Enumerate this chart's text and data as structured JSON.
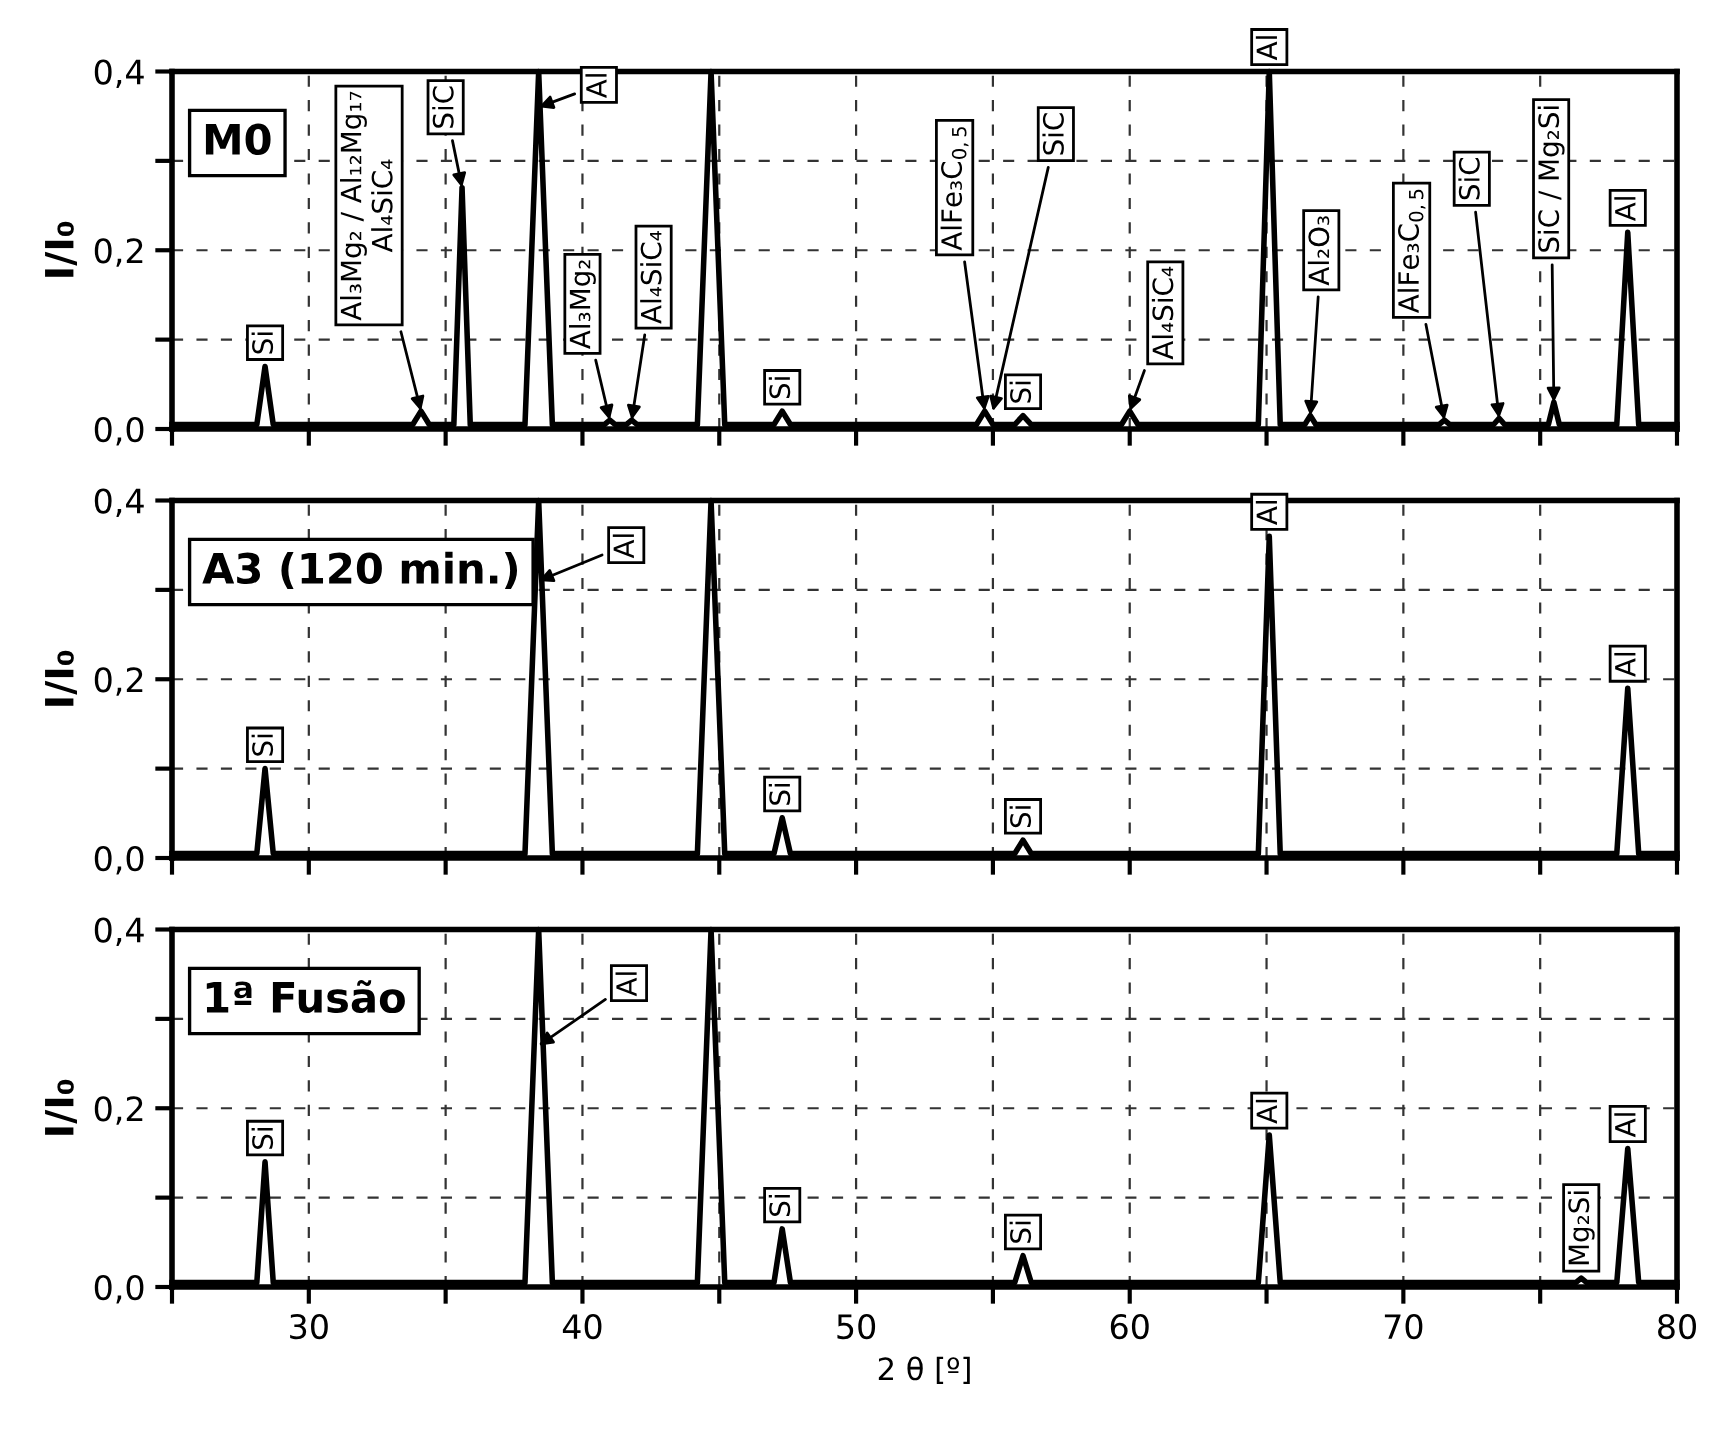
{
  "chart_data": [
    {
      "type": "line",
      "ylabel": "I/I₀",
      "xlim": [
        25,
        80
      ],
      "ylim": [
        0,
        0.4
      ],
      "grid": true,
      "tick_labels": "y",
      "xticks": [
        {
          "value": 25,
          "label": null
        },
        {
          "value": 30,
          "label": null
        },
        {
          "value": 35,
          "label": null
        },
        {
          "value": 40,
          "label": null
        },
        {
          "value": 45,
          "label": null
        },
        {
          "value": 50,
          "label": null
        },
        {
          "value": 55,
          "label": null
        },
        {
          "value": 60,
          "label": null
        },
        {
          "value": 65,
          "label": null
        },
        {
          "value": 70,
          "label": null
        },
        {
          "value": 75,
          "label": null
        },
        {
          "value": 80,
          "label": null
        }
      ],
      "yticks": [
        {
          "value": 0,
          "label": "0,0"
        },
        {
          "value": 0.1,
          "label": null
        },
        {
          "value": 0.2,
          "label": "0,2"
        },
        {
          "value": 0.3,
          "label": null
        },
        {
          "value": 0.4,
          "label": "0,4"
        }
      ],
      "series": [
        {
          "color": "#000000",
          "x": [
            25,
            28.1,
            28.4,
            28.7,
            33.8,
            34.1,
            34.4,
            35.3,
            35.6,
            35.9,
            37.9,
            38.4,
            38.9,
            40.8,
            41.0,
            41.2,
            41.6,
            41.8,
            42.0,
            44.2,
            44.7,
            45.2,
            47.0,
            47.3,
            47.6,
            54.4,
            54.7,
            55.0,
            55.8,
            56.1,
            56.4,
            59.7,
            60.0,
            60.3,
            64.7,
            65.1,
            65.5,
            66.4,
            66.6,
            66.8,
            71.3,
            71.5,
            71.7,
            73.3,
            73.5,
            73.7,
            75.3,
            75.5,
            75.7,
            77.8,
            78.2,
            78.6,
            80
          ],
          "values": [
            0.005,
            0.005,
            0.07,
            0.005,
            0.005,
            0.02,
            0.005,
            0.005,
            0.27,
            0.005,
            0.005,
            0.4,
            0.005,
            0.005,
            0.01,
            0.005,
            0.005,
            0.01,
            0.005,
            0.005,
            0.4,
            0.005,
            0.005,
            0.02,
            0.005,
            0.005,
            0.02,
            0.005,
            0.005,
            0.015,
            0.005,
            0.005,
            0.02,
            0.005,
            0.005,
            0.4,
            0.005,
            0.005,
            0.015,
            0.005,
            0.005,
            0.01,
            0.005,
            0.005,
            0.012,
            0.005,
            0.005,
            0.03,
            0.005,
            0.005,
            0.22,
            0.005,
            0.005
          ]
        }
      ],
      "annotations": [
        "M0",
        {
          "text": "Si",
          "x": 28.4,
          "y": 0.07
        },
        {
          "text": "Al₃Mg₂ / Al₁₂Mg₁₇\nAl₄SiC₄",
          "x": 34.1,
          "y": 0.02
        },
        {
          "text": "SiC",
          "x": 35.6,
          "y": 0.27
        },
        {
          "text": "Al",
          "x": 38.4,
          "y": 0.36
        },
        {
          "text": "Al₃Mg₂",
          "x": 41.0,
          "y": 0.01
        },
        {
          "text": "Al₄SiC₄",
          "x": 41.8,
          "y": 0.01
        },
        {
          "text": "Si",
          "x": 47.3,
          "y": 0.02
        },
        {
          "text": "AlFe₃C$_{0,5}$",
          "x": 54.7,
          "y": 0.02
        },
        {
          "text": "SiC",
          "x": 55.0,
          "y": 0.02
        },
        {
          "text": "Si",
          "x": 56.1,
          "y": 0.015
        },
        {
          "text": "Al₄SiC₄",
          "x": 60.0,
          "y": 0.02
        },
        {
          "text": "Al",
          "x": 65.1,
          "y": 0.4
        },
        {
          "text": "Al₂O₃",
          "x": 66.6,
          "y": 0.015
        },
        {
          "text": "AlFe₃C$_{0,5}$",
          "x": 71.5,
          "y": 0.01
        },
        {
          "text": "SiC",
          "x": 73.5,
          "y": 0.012
        },
        {
          "text": "SiC / Mg₂Si",
          "x": 75.5,
          "y": 0.03
        },
        {
          "text": "Al",
          "x": 78.2,
          "y": 0.22
        }
      ]
    },
    {
      "type": "line",
      "ylabel": "I/I₀",
      "xlim": [
        25,
        80
      ],
      "ylim": [
        0,
        0.4
      ],
      "grid": true,
      "tick_labels": "y",
      "xticks": [
        {
          "value": 25,
          "label": null
        },
        {
          "value": 30,
          "label": null
        },
        {
          "value": 35,
          "label": null
        },
        {
          "value": 40,
          "label": null
        },
        {
          "value": 45,
          "label": null
        },
        {
          "value": 50,
          "label": null
        },
        {
          "value": 55,
          "label": null
        },
        {
          "value": 60,
          "label": null
        },
        {
          "value": 65,
          "label": null
        },
        {
          "value": 70,
          "label": null
        },
        {
          "value": 75,
          "label": null
        },
        {
          "value": 80,
          "label": null
        }
      ],
      "yticks": [
        {
          "value": 0,
          "label": "0,0"
        },
        {
          "value": 0.1,
          "label": null
        },
        {
          "value": 0.2,
          "label": "0,2"
        },
        {
          "value": 0.3,
          "label": null
        },
        {
          "value": 0.4,
          "label": "0,4"
        }
      ],
      "series": [
        {
          "color": "#000000",
          "x": [
            25,
            28.1,
            28.4,
            28.7,
            37.9,
            38.4,
            38.9,
            44.2,
            44.7,
            45.2,
            47.0,
            47.3,
            47.6,
            55.8,
            56.1,
            56.4,
            64.7,
            65.1,
            65.5,
            77.8,
            78.2,
            78.6,
            80
          ],
          "values": [
            0.005,
            0.005,
            0.1,
            0.005,
            0.005,
            0.4,
            0.005,
            0.005,
            0.4,
            0.005,
            0.005,
            0.045,
            0.005,
            0.005,
            0.02,
            0.005,
            0.005,
            0.36,
            0.005,
            0.005,
            0.19,
            0.005,
            0.005
          ]
        }
      ],
      "annotations": [
        "A3 (120 min.)",
        {
          "text": "Si",
          "x": 28.4,
          "y": 0.1
        },
        {
          "text": "Al",
          "x": 38.4,
          "y": 0.31
        },
        {
          "text": "Si",
          "x": 47.3,
          "y": 0.045
        },
        {
          "text": "Si",
          "x": 56.1,
          "y": 0.02
        },
        {
          "text": "Al",
          "x": 65.1,
          "y": 0.36
        },
        {
          "text": "Al",
          "x": 78.2,
          "y": 0.19
        }
      ]
    },
    {
      "type": "line",
      "ylabel": "I/I₀",
      "xlabel": "2 θ [º]",
      "xlim": [
        25,
        80
      ],
      "ylim": [
        0,
        0.4
      ],
      "grid": true,
      "xticks": [
        {
          "value": 25,
          "label": null
        },
        30,
        {
          "value": 35,
          "label": null
        },
        40,
        {
          "value": 45,
          "label": null
        },
        50,
        {
          "value": 55,
          "label": null
        },
        60,
        {
          "value": 65,
          "label": null
        },
        70,
        {
          "value": 75,
          "label": null
        },
        80
      ],
      "yticks": [
        {
          "value": 0,
          "label": "0,0"
        },
        {
          "value": 0.1,
          "label": null
        },
        {
          "value": 0.2,
          "label": "0,2"
        },
        {
          "value": 0.3,
          "label": null
        },
        {
          "value": 0.4,
          "label": "0,4"
        }
      ],
      "series": [
        {
          "color": "#000000",
          "x": [
            25,
            28.1,
            28.4,
            28.7,
            37.9,
            38.4,
            38.9,
            44.2,
            44.7,
            45.2,
            47.0,
            47.3,
            47.6,
            55.8,
            56.1,
            56.4,
            64.7,
            65.1,
            65.5,
            76.3,
            76.5,
            76.7,
            77.8,
            78.2,
            78.6,
            80
          ],
          "values": [
            0.005,
            0.005,
            0.14,
            0.005,
            0.005,
            0.4,
            0.005,
            0.005,
            0.4,
            0.005,
            0.005,
            0.065,
            0.005,
            0.005,
            0.035,
            0.005,
            0.005,
            0.17,
            0.005,
            0.005,
            0.01,
            0.005,
            0.005,
            0.155,
            0.005,
            0.005
          ]
        }
      ],
      "annotations": [
        "1ª Fusão",
        {
          "text": "Si",
          "x": 28.4,
          "y": 0.14
        },
        {
          "text": "Al",
          "x": 38.4,
          "y": 0.27
        },
        {
          "text": "Si",
          "x": 47.3,
          "y": 0.065
        },
        {
          "text": "Si",
          "x": 56.1,
          "y": 0.035
        },
        {
          "text": "Al",
          "x": 65.1,
          "y": 0.17
        },
        {
          "text": "Mg₂Si",
          "x": 76.5,
          "y": 0.01
        },
        {
          "text": "Al",
          "x": 78.2,
          "y": 0.155
        }
      ]
    }
  ]
}
